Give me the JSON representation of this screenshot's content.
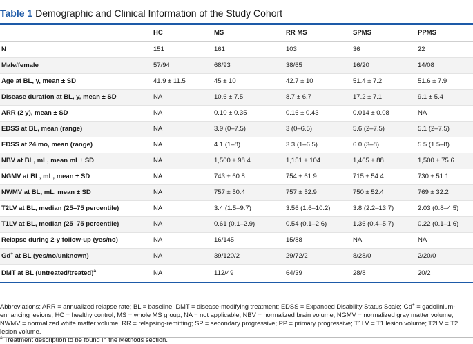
{
  "caption": {
    "label": "Table 1",
    "text": "Demographic and Clinical Information of the Study Cohort"
  },
  "table": {
    "columns": [
      "HC",
      "MS",
      "RR MS",
      "SPMS",
      "PPMS"
    ],
    "rows": [
      {
        "label": "N",
        "label_sup": "",
        "suffix": "",
        "values": [
          "151",
          "161",
          "103",
          "36",
          "22"
        ]
      },
      {
        "label": "Male/female",
        "label_sup": "",
        "suffix": "",
        "values": [
          "57/94",
          "68/93",
          "38/65",
          "16/20",
          "14/08"
        ]
      },
      {
        "label": "Age at BL, y, mean ± SD",
        "label_sup": "",
        "suffix": "",
        "values": [
          "41.9 ± 11.5",
          "45 ± 10",
          "42.7 ± 10",
          "51.4 ± 7.2",
          "51.6 ± 7.9"
        ]
      },
      {
        "label": "Disease duration at BL, y, mean ± SD",
        "label_sup": "",
        "suffix": "",
        "values": [
          "NA",
          "10.6 ± 7.5",
          "8.7 ± 6.7",
          "17.2 ± 7.1",
          "9.1 ± 5.4"
        ]
      },
      {
        "label": "ARR (2 y), mean ± SD",
        "label_sup": "",
        "suffix": "",
        "values": [
          "NA",
          "0.10 ± 0.35",
          "0.16 ± 0.43",
          "0.014 ± 0.08",
          "NA"
        ]
      },
      {
        "label": "EDSS at BL, mean (range)",
        "label_sup": "",
        "suffix": "",
        "values": [
          "NA",
          "3.9 (0–7.5)",
          "3 (0–6.5)",
          "5.6 (2–7.5)",
          "5.1 (2–7.5)"
        ]
      },
      {
        "label": "EDSS at 24 mo, mean (range)",
        "label_sup": "",
        "suffix": "",
        "values": [
          "NA",
          "4.1 (1–8)",
          "3.3 (1–6.5)",
          "6.0 (3–8)",
          "5.5 (1.5–8)"
        ]
      },
      {
        "label": "NBV at BL, mL, mean mL± SD",
        "label_sup": "",
        "suffix": "",
        "values": [
          "NA",
          "1,500 ± 98.4",
          "1,151 ± 104",
          "1,465 ± 88",
          "1,500 ± 75.6"
        ]
      },
      {
        "label": "NGMV at BL, mL, mean ± SD",
        "label_sup": "",
        "suffix": "",
        "values": [
          "NA",
          "743 ± 60.8",
          "754 ± 61.9",
          "715 ± 54.4",
          "730 ± 51.1"
        ]
      },
      {
        "label": "NWMV at BL, mL, mean ± SD",
        "label_sup": "",
        "suffix": "",
        "values": [
          "NA",
          "757 ± 50.4",
          "757 ± 52.9",
          "750 ± 52.4",
          "769 ± 32.2"
        ]
      },
      {
        "label": "T2LV at BL, median (25–75 percentile)",
        "label_sup": "",
        "suffix": "",
        "values": [
          "NA",
          "3.4 (1.5–9.7)",
          "3.56 (1.6–10.2)",
          "3.8 (2.2–13.7)",
          "2.03 (0.8–4.5)"
        ]
      },
      {
        "label": "T1LV at BL, median (25–75 percentile)",
        "label_sup": "",
        "suffix": "",
        "values": [
          "NA",
          "0.61 (0.1–2.9)",
          "0.54 (0.1–2.6)",
          "1.36 (0.4–5.7)",
          "0.22 (0.1–1.6)"
        ]
      },
      {
        "label": "Relapse during 2-y follow-up (yes/no)",
        "label_sup": "",
        "suffix": "",
        "values": [
          "NA",
          "16/145",
          "15/88",
          "NA",
          "NA"
        ]
      },
      {
        "label": "Gd",
        "label_sup": "+",
        "suffix": " at BL (yes/no/unknown)",
        "values": [
          "NA",
          "39/120/2",
          "29/72/2",
          "8/28/0",
          "2/20/0"
        ]
      },
      {
        "label": "DMT at BL (untreated/treated)",
        "label_sup": "a",
        "suffix": "",
        "values": [
          "NA",
          "112/49",
          "64/39",
          "28/8",
          "20/2"
        ]
      }
    ]
  },
  "footnotes": {
    "abbreviations": "Abbreviations: ARR = annualized relapse rate; BL = baseline; DMT = disease-modifying treatment; EDSS = Expanded Disability Status Scale; Gd",
    "abbreviations_sup": "+",
    "abbreviations_rest": " = gadolinium-enhancing lesions; HC = healthy control; MS = whole MS group; NA = not applicable; NBV = normalized brain volume; NGMV = normalized gray matter volume; NWMV = normalized white matter volume; RR = relapsing-remitting; SP = secondary progressive; PP = primary progressive; T1LV = T1 lesion volume; T2LV = T2 lesion volume.",
    "note_mark": "a",
    "note_text": " Treatment description to be found in the Methods section."
  }
}
